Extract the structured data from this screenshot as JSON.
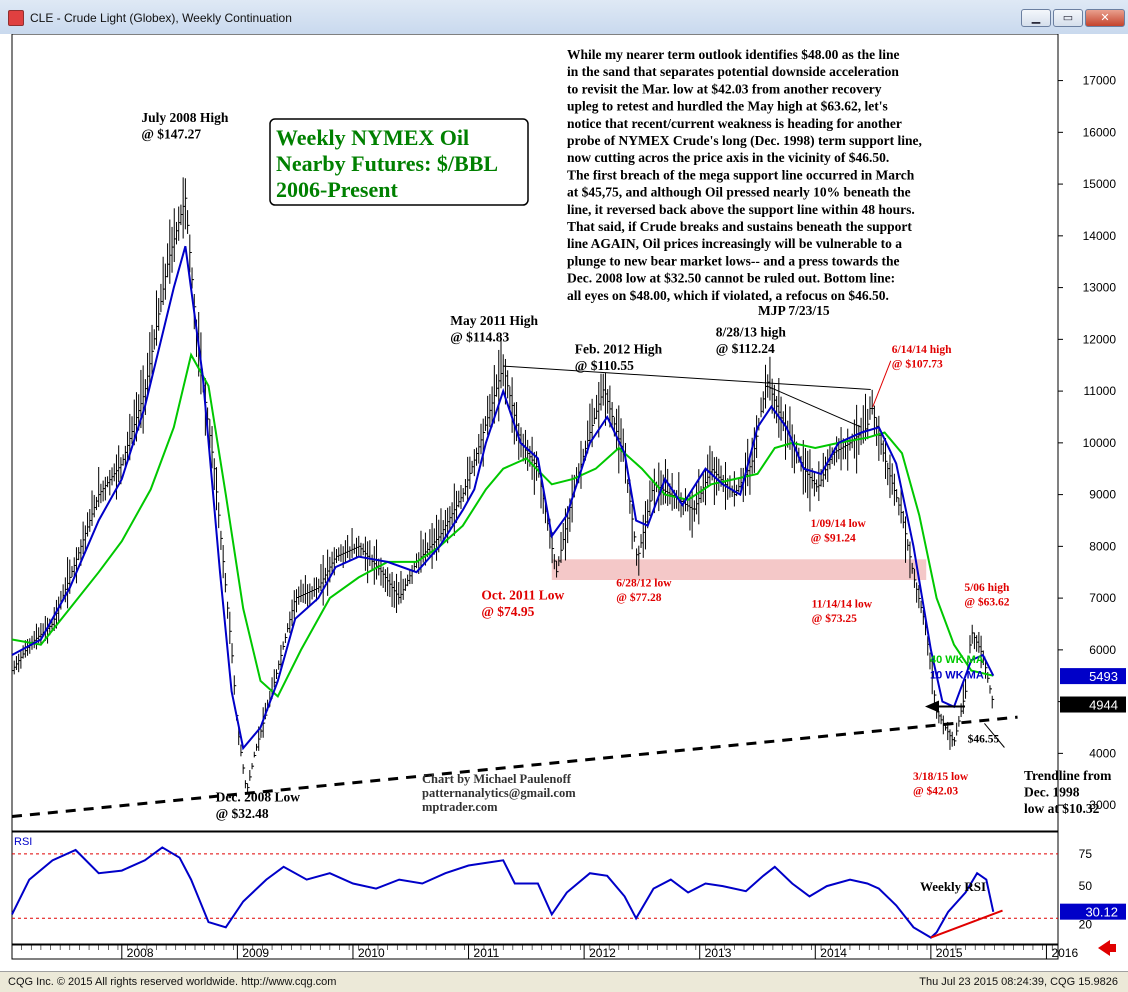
{
  "window": {
    "title": "CLE - Crude Light (Globex), Weekly Continuation",
    "min_label": "▁",
    "max_label": "▭",
    "close_label": "✕"
  },
  "footer": {
    "copyright": "CQG Inc. © 2015 All rights reserved worldwide. http://www.cqg.com",
    "timestamp": "Thu Jul 23 2015 08:24:39, CQG 15.9826"
  },
  "colors": {
    "price_bars": "#000000",
    "ma10": "#0000c8",
    "ma40": "#00c800",
    "annotation_red": "#e00000",
    "title_green": "#008000",
    "last_price_bg": "#000000",
    "ma_price_bg": "#0000c8",
    "rsi_line": "#0000c8",
    "support_zone": "#e06060"
  },
  "chart_data": {
    "type": "line",
    "title_lines": [
      "Weekly NYMEX Oil",
      "Nearby Futures: $/BBL",
      "2006-Present"
    ],
    "y_ticks": [
      3000,
      4000,
      5000,
      6000,
      7000,
      8000,
      9000,
      10000,
      11000,
      12000,
      13000,
      14000,
      15000,
      16000,
      17000
    ],
    "ylim": [
      2500,
      17900
    ],
    "x_ticks": [
      "2008",
      "2009",
      "2010",
      "2011",
      "2012",
      "2013",
      "2014",
      "2015",
      "2016"
    ],
    "xlim": [
      2007.05,
      2016.1
    ],
    "series": [
      {
        "name": "10 WK MA",
        "points": [
          [
            2007.05,
            5900
          ],
          [
            2007.3,
            6200
          ],
          [
            2007.55,
            7200
          ],
          [
            2007.8,
            8500
          ],
          [
            2008.0,
            9300
          ],
          [
            2008.2,
            10700
          ],
          [
            2008.45,
            13000
          ],
          [
            2008.55,
            13800
          ],
          [
            2008.7,
            11300
          ],
          [
            2008.85,
            7500
          ],
          [
            2008.95,
            5200
          ],
          [
            2009.05,
            4100
          ],
          [
            2009.2,
            4500
          ],
          [
            2009.35,
            5400
          ],
          [
            2009.5,
            6600
          ],
          [
            2009.7,
            7000
          ],
          [
            2009.85,
            7600
          ],
          [
            2010.05,
            7800
          ],
          [
            2010.3,
            7700
          ],
          [
            2010.55,
            7500
          ],
          [
            2010.75,
            8000
          ],
          [
            2010.95,
            8700
          ],
          [
            2011.05,
            9100
          ],
          [
            2011.15,
            10000
          ],
          [
            2011.3,
            11000
          ],
          [
            2011.45,
            10000
          ],
          [
            2011.6,
            9700
          ],
          [
            2011.72,
            8200
          ],
          [
            2011.85,
            8600
          ],
          [
            2012.05,
            10000
          ],
          [
            2012.2,
            10500
          ],
          [
            2012.35,
            9800
          ],
          [
            2012.45,
            8500
          ],
          [
            2012.55,
            8400
          ],
          [
            2012.7,
            9300
          ],
          [
            2012.85,
            8800
          ],
          [
            2013.05,
            9500
          ],
          [
            2013.2,
            9200
          ],
          [
            2013.35,
            9000
          ],
          [
            2013.5,
            10300
          ],
          [
            2013.62,
            10700
          ],
          [
            2013.75,
            10300
          ],
          [
            2013.9,
            9500
          ],
          [
            2014.05,
            9400
          ],
          [
            2014.2,
            10000
          ],
          [
            2014.4,
            10200
          ],
          [
            2014.55,
            10300
          ],
          [
            2014.7,
            9600
          ],
          [
            2014.85,
            8000
          ],
          [
            2015.0,
            6000
          ],
          [
            2015.1,
            5000
          ],
          [
            2015.2,
            4900
          ],
          [
            2015.35,
            5800
          ],
          [
            2015.45,
            5900
          ],
          [
            2015.54,
            5500
          ]
        ]
      },
      {
        "name": "40 WK MA",
        "points": [
          [
            2007.05,
            6200
          ],
          [
            2007.3,
            6100
          ],
          [
            2007.55,
            6800
          ],
          [
            2007.8,
            7500
          ],
          [
            2008.0,
            8100
          ],
          [
            2008.25,
            9100
          ],
          [
            2008.45,
            10300
          ],
          [
            2008.6,
            11700
          ],
          [
            2008.75,
            11100
          ],
          [
            2008.9,
            9000
          ],
          [
            2009.05,
            6800
          ],
          [
            2009.2,
            5400
          ],
          [
            2009.35,
            5100
          ],
          [
            2009.55,
            6000
          ],
          [
            2009.8,
            7000
          ],
          [
            2010.05,
            7400
          ],
          [
            2010.3,
            7700
          ],
          [
            2010.55,
            7700
          ],
          [
            2010.75,
            8000
          ],
          [
            2010.95,
            8400
          ],
          [
            2011.15,
            9100
          ],
          [
            2011.3,
            9500
          ],
          [
            2011.5,
            9700
          ],
          [
            2011.72,
            9200
          ],
          [
            2011.9,
            9300
          ],
          [
            2012.1,
            9500
          ],
          [
            2012.3,
            9900
          ],
          [
            2012.5,
            9500
          ],
          [
            2012.7,
            9000
          ],
          [
            2012.9,
            8900
          ],
          [
            2013.1,
            9200
          ],
          [
            2013.3,
            9300
          ],
          [
            2013.5,
            9400
          ],
          [
            2013.65,
            9900
          ],
          [
            2013.8,
            10000
          ],
          [
            2014.0,
            9900
          ],
          [
            2014.2,
            10000
          ],
          [
            2014.45,
            10100
          ],
          [
            2014.6,
            10200
          ],
          [
            2014.75,
            9800
          ],
          [
            2014.9,
            8600
          ],
          [
            2015.05,
            7000
          ],
          [
            2015.2,
            6100
          ],
          [
            2015.35,
            5600
          ],
          [
            2015.54,
            5500
          ]
        ]
      },
      {
        "name": "Weekly RSI",
        "points": [
          [
            2007.05,
            28
          ],
          [
            2007.2,
            55
          ],
          [
            2007.4,
            70
          ],
          [
            2007.6,
            78
          ],
          [
            2007.8,
            60
          ],
          [
            2008.0,
            62
          ],
          [
            2008.2,
            70
          ],
          [
            2008.35,
            80
          ],
          [
            2008.5,
            72
          ],
          [
            2008.6,
            55
          ],
          [
            2008.75,
            22
          ],
          [
            2008.9,
            18
          ],
          [
            2009.05,
            38
          ],
          [
            2009.25,
            55
          ],
          [
            2009.4,
            65
          ],
          [
            2009.6,
            55
          ],
          [
            2009.8,
            60
          ],
          [
            2010.0,
            52
          ],
          [
            2010.2,
            48
          ],
          [
            2010.4,
            55
          ],
          [
            2010.6,
            52
          ],
          [
            2010.8,
            60
          ],
          [
            2011.0,
            66
          ],
          [
            2011.15,
            68
          ],
          [
            2011.3,
            70
          ],
          [
            2011.4,
            52
          ],
          [
            2011.6,
            52
          ],
          [
            2011.72,
            28
          ],
          [
            2011.85,
            45
          ],
          [
            2012.05,
            60
          ],
          [
            2012.2,
            58
          ],
          [
            2012.35,
            42
          ],
          [
            2012.45,
            25
          ],
          [
            2012.6,
            48
          ],
          [
            2012.75,
            55
          ],
          [
            2012.9,
            45
          ],
          [
            2013.05,
            52
          ],
          [
            2013.2,
            50
          ],
          [
            2013.4,
            46
          ],
          [
            2013.55,
            58
          ],
          [
            2013.65,
            65
          ],
          [
            2013.8,
            52
          ],
          [
            2013.95,
            42
          ],
          [
            2014.1,
            50
          ],
          [
            2014.3,
            55
          ],
          [
            2014.45,
            52
          ],
          [
            2014.55,
            48
          ],
          [
            2014.7,
            35
          ],
          [
            2014.85,
            18
          ],
          [
            2015.0,
            10
          ],
          [
            2015.05,
            14
          ],
          [
            2015.15,
            30
          ],
          [
            2015.3,
            45
          ],
          [
            2015.4,
            60
          ],
          [
            2015.48,
            55
          ],
          [
            2015.54,
            30
          ]
        ]
      }
    ],
    "price_path": [
      [
        2007.05,
        5600
      ],
      [
        2007.2,
        6100
      ],
      [
        2007.4,
        6500
      ],
      [
        2007.6,
        7700
      ],
      [
        2007.8,
        9000
      ],
      [
        2008.0,
        9600
      ],
      [
        2008.2,
        11000
      ],
      [
        2008.4,
        13500
      ],
      [
        2008.55,
        14727
      ],
      [
        2008.65,
        12000
      ],
      [
        2008.8,
        9500
      ],
      [
        2008.95,
        6000
      ],
      [
        2009.0,
        4500
      ],
      [
        2009.08,
        3248
      ],
      [
        2009.15,
        4000
      ],
      [
        2009.3,
        5200
      ],
      [
        2009.5,
        7000
      ],
      [
        2009.7,
        7200
      ],
      [
        2009.85,
        7800
      ],
      [
        2010.05,
        8000
      ],
      [
        2010.25,
        7500
      ],
      [
        2010.4,
        7000
      ],
      [
        2010.55,
        7700
      ],
      [
        2010.75,
        8200
      ],
      [
        2010.95,
        9000
      ],
      [
        2011.1,
        10000
      ],
      [
        2011.3,
        11483
      ],
      [
        2011.45,
        10000
      ],
      [
        2011.6,
        9500
      ],
      [
        2011.76,
        7495
      ],
      [
        2011.9,
        9000
      ],
      [
        2012.05,
        10200
      ],
      [
        2012.17,
        11055
      ],
      [
        2012.35,
        9700
      ],
      [
        2012.46,
        7728
      ],
      [
        2012.6,
        9200
      ],
      [
        2012.75,
        9000
      ],
      [
        2012.95,
        8700
      ],
      [
        2013.1,
        9500
      ],
      [
        2013.3,
        9000
      ],
      [
        2013.45,
        9600
      ],
      [
        2013.58,
        11224
      ],
      [
        2013.7,
        10500
      ],
      [
        2013.9,
        9500
      ],
      [
        2014.02,
        9124
      ],
      [
        2014.15,
        9800
      ],
      [
        2014.3,
        10000
      ],
      [
        2014.45,
        10300
      ],
      [
        2014.48,
        10773
      ],
      [
        2014.6,
        9700
      ],
      [
        2014.75,
        8600
      ],
      [
        2014.86,
        7325
      ],
      [
        2014.95,
        6500
      ],
      [
        2015.05,
        4800
      ],
      [
        2015.2,
        4203
      ],
      [
        2015.3,
        5200
      ],
      [
        2015.35,
        6362
      ],
      [
        2015.45,
        5900
      ],
      [
        2015.54,
        4944
      ]
    ],
    "annotations": [
      {
        "text": [
          "July 2008 High",
          "@ $147.27"
        ],
        "x": 2008.55,
        "y": 14727
      },
      {
        "text": [
          "Dec. 2008 Low",
          "@ $32.48"
        ],
        "x": 2009.08,
        "y": 3248
      },
      {
        "text": [
          "May 2011 High",
          "@ $114.83"
        ],
        "x": 2011.3,
        "y": 11483
      },
      {
        "text": [
          "Feb. 2012 High",
          "@ $110.55"
        ],
        "x": 2012.17,
        "y": 11055
      },
      {
        "text": [
          "8/28/13 high",
          "@ $112.24"
        ],
        "x": 2013.58,
        "y": 11224
      },
      {
        "text": [
          "6/14/14 high",
          "@ $107.73"
        ],
        "x": 2014.48,
        "y": 10773
      },
      {
        "text": [
          "1/09/14 low",
          "@ $91.24"
        ],
        "x": 2014.02,
        "y": 9124
      },
      {
        "text": [
          "Oct. 2011 Low",
          "@ $74.95"
        ],
        "x": 2011.76,
        "y": 7495
      },
      {
        "text": [
          "6/28/12 low",
          "@ $77.28"
        ],
        "x": 2012.46,
        "y": 7728
      },
      {
        "text": [
          "11/14/14 low",
          "@ $73.25"
        ],
        "x": 2014.86,
        "y": 7325
      },
      {
        "text": [
          "5/06 high",
          "@ $63.62"
        ],
        "x": 2015.35,
        "y": 6362
      },
      {
        "text": [
          "3/18/15 low",
          "@ $42.03"
        ],
        "x": 2015.2,
        "y": 4203
      },
      {
        "text": [
          "$46.55"
        ],
        "x": 2015.5,
        "y": 4655
      },
      {
        "text": [
          "Trendline from",
          "Dec. 1998",
          "low at $10.32"
        ],
        "x": 2015.65,
        "y": 4200
      }
    ],
    "commentary": [
      "While my nearer term outlook identifies $48.00 as the line",
      "in the sand that separates potential downside acceleration",
      "to revisit the Mar. low at $42.03 from another recovery",
      "upleg to retest and hurdled the May high at $63.62, let's",
      "notice that recent/current weakness is heading for another",
      "probe of NYMEX Crude's long (Dec. 1998) term support line,",
      "now cutting acros the price axis in the vicinity of $46.50.",
      "The first breach of the mega support line occurred in March",
      "at $45,75, and although Oil pressed nearly 10% beneath the",
      "line, it reversed back above the support line within 48 hours.",
      "That said, if Crude breaks and sustains beneath the support",
      "line AGAIN, Oil prices increasingly will be vulnerable to a",
      "plunge to new bear market lows-- and a press towards the",
      "Dec. 2008 low at $32.50 cannot be ruled out. Bottom line:",
      "all eyes on $48.00, which if violated, a refocus on $46.50."
    ],
    "signature": "MJP 7/23/15",
    "credit": [
      "Chart by Michael Paulenoff",
      "patternanalytics@gmail.com",
      "mptrader.com"
    ],
    "legend": {
      "ma40": "40 WK MA",
      "ma10": "10 WK MA"
    },
    "price_labels": {
      "ma": "5493",
      "last": "4944",
      "ma_value": 5493,
      "last_value": 4944
    },
    "rsi": {
      "label": "RSI",
      "title": "Weekly RSI",
      "ticks": [
        "75",
        "50",
        "20"
      ],
      "tick_values": [
        75,
        50,
        20
      ],
      "ylim": [
        5,
        92
      ],
      "upper_band": 75,
      "lower_band": 25,
      "value_label": "30.12",
      "value": 30.12
    }
  }
}
